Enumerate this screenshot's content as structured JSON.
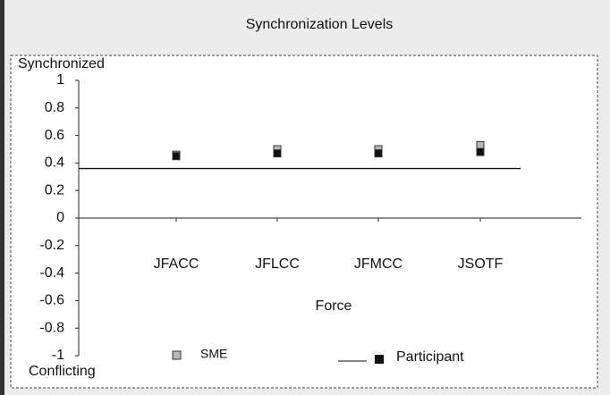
{
  "chart_data": {
    "type": "scatter",
    "title": "Synchronization Levels",
    "top_label": "Synchronized",
    "bottom_label": "Conflicting",
    "xlabel": "Force",
    "categories": [
      "JFACC",
      "JFLCC",
      "JFMCC",
      "JSOTF"
    ],
    "series": [
      {
        "name": "SME",
        "color": "#b8b8b8",
        "values": [
          0.46,
          0.5,
          0.5,
          0.53
        ]
      },
      {
        "name": "Participant",
        "color": "#111111",
        "values": [
          0.45,
          0.47,
          0.47,
          0.48
        ]
      }
    ],
    "reference_line": 0.36,
    "ylim": [
      -1,
      1
    ],
    "yticks": [
      -1,
      -0.8,
      -0.6,
      -0.4,
      -0.2,
      0,
      0.2,
      0.4,
      0.6,
      0.8,
      1
    ]
  }
}
